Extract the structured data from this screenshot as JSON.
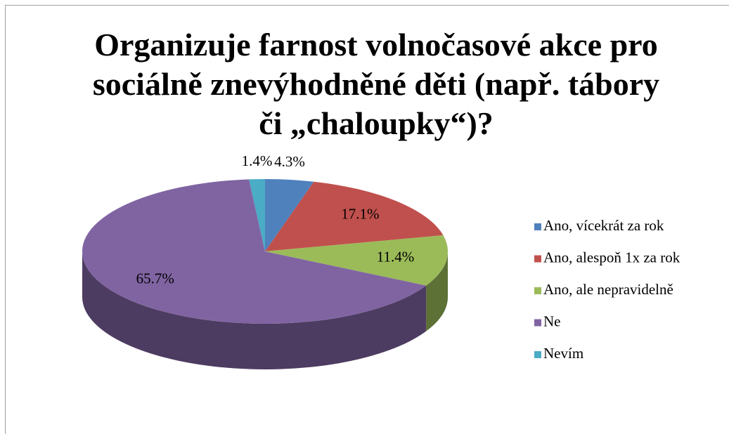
{
  "chart_data": {
    "type": "pie3d",
    "title": "Organizuje farnost volnočasové akce pro sociálně znevýhodněné děti (např. tábory či „chaloupky“)?",
    "categories": [
      "Ano, vícekrát za rok",
      "Ano, alespoň 1x za rok",
      "Ano, ale nepravidelně",
      "Ne",
      "Nevím"
    ],
    "values": [
      4.3,
      17.1,
      11.4,
      65.7,
      1.4
    ],
    "value_labels": [
      "4.3%",
      "17.1%",
      "11.4%",
      "65.7%",
      "1.4%"
    ],
    "colors": [
      "#4f81bd",
      "#c0504d",
      "#9bbb59",
      "#8064a2",
      "#4bacc6"
    ],
    "legend": "right"
  }
}
